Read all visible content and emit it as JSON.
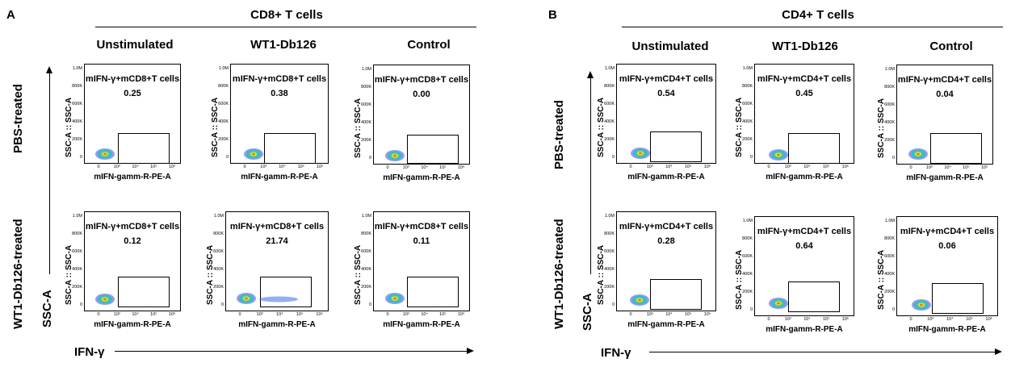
{
  "panels": [
    {
      "letter": "A",
      "title": "CD8+ T cells",
      "columns": [
        "Unstimulated",
        "WT1-Db126",
        "Control"
      ],
      "rows": [
        "PBS-treated",
        "WT1-Db126-treated"
      ],
      "x_axis_word": "IFN-γ",
      "y_axis_word": "SSC-A"
    },
    {
      "letter": "B",
      "title": "CD4+ T cells",
      "columns": [
        "Unstimulated",
        "WT1-Db126",
        "Control"
      ],
      "rows": [
        "PBS-treated",
        "WT1-Db126-treated"
      ],
      "x_axis_word": "IFN-γ",
      "y_axis_word": "SSC-A"
    }
  ],
  "plot_common": {
    "xlabel": "mIFN-gamm-R-PE-A",
    "ylabel": "SSC-A :: SSC-A",
    "yticks": [
      "1.0M",
      "800K",
      "600K",
      "400K",
      "200K",
      "0"
    ],
    "xticks": [
      "0",
      "10³",
      "10⁴",
      "10⁵",
      "10⁶"
    ]
  },
  "chart_data": [
    {
      "type": "scatter",
      "panel": "A",
      "title": "CD8+ T cells",
      "xlabel": "mIFN-gamm-R-PE-A",
      "ylabel": "SSC-A :: SSC-A",
      "plots": [
        {
          "row": "PBS-treated",
          "column": "Unstimulated",
          "gate": "mIFN-γ+mCD8+T cells",
          "value": "0.25"
        },
        {
          "row": "PBS-treated",
          "column": "WT1-Db126",
          "gate": "mIFN-γ+mCD8+T cells",
          "value": "0.38"
        },
        {
          "row": "PBS-treated",
          "column": "Control",
          "gate": "mIFN-γ+mCD8+T cells",
          "value": "0.00"
        },
        {
          "row": "WT1-Db126-treated",
          "column": "Unstimulated",
          "gate": "mIFN-γ+mCD8+T cells",
          "value": "0.12"
        },
        {
          "row": "WT1-Db126-treated",
          "column": "WT1-Db126",
          "gate": "mIFN-γ+mCD8+T cells",
          "value": "21.74"
        },
        {
          "row": "WT1-Db126-treated",
          "column": "Control",
          "gate": "mIFN-γ+mCD8+T cells",
          "value": "0.11"
        }
      ]
    },
    {
      "type": "scatter",
      "panel": "B",
      "title": "CD4+ T cells",
      "xlabel": "mIFN-gamm-R-PE-A",
      "ylabel": "SSC-A :: SSC-A",
      "plots": [
        {
          "row": "PBS-treated",
          "column": "Unstimulated",
          "gate": "mIFN-γ+mCD4+T cells",
          "value": "0.54"
        },
        {
          "row": "PBS-treated",
          "column": "WT1-Db126",
          "gate": "mIFN-γ+mCD4+T cells",
          "value": "0.45"
        },
        {
          "row": "PBS-treated",
          "column": "Control",
          "gate": "mIFN-γ+mCD4+T cells",
          "value": "0.04"
        },
        {
          "row": "WT1-Db126-treated",
          "column": "Unstimulated",
          "gate": "mIFN-γ+mCD4+T cells",
          "value": "0.28"
        },
        {
          "row": "WT1-Db126-treated",
          "column": "WT1-Db126",
          "gate": "mIFN-γ+mCD4+T cells",
          "value": "0.64"
        },
        {
          "row": "WT1-Db126-treated",
          "column": "Control",
          "gate": "mIFN-γ+mCD4+T cells",
          "value": "0.06"
        }
      ]
    }
  ]
}
